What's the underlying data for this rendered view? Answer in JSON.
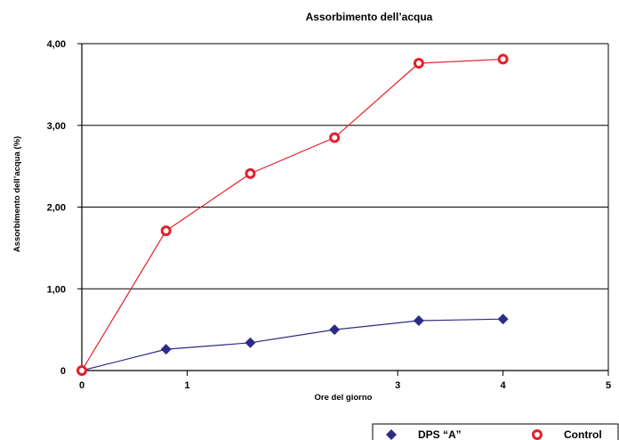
{
  "chart_data": {
    "type": "line",
    "title": "Assorbimento dell’acqua",
    "xlabel": "Ore del giorno",
    "ylabel": "Assorbimento dell’acqua (%)",
    "xlim": [
      0,
      5
    ],
    "ylim": [
      0,
      4
    ],
    "x_ticks": [
      "0",
      "1",
      "3",
      "4",
      "5"
    ],
    "x_tick_values": [
      0,
      1,
      3,
      4,
      5
    ],
    "y_ticks": [
      "0",
      "1,00",
      "2,00",
      "3,00",
      "4,00"
    ],
    "y_tick_values": [
      0,
      1,
      2,
      3,
      4
    ],
    "grid": "horizontal",
    "legend_position": "bottom-right",
    "series": [
      {
        "name": "DPS “A”",
        "color": "#2e2b86",
        "marker": "diamond",
        "x": [
          0,
          0.8,
          1.6,
          2.4,
          3.2,
          4.0
        ],
        "y": [
          0.0,
          0.26,
          0.34,
          0.5,
          0.61,
          0.63
        ]
      },
      {
        "name": "Control",
        "color": "#e3202a",
        "marker": "open-circle",
        "x": [
          0,
          0.8,
          1.6,
          2.4,
          3.2,
          4.0
        ],
        "y": [
          0.0,
          1.71,
          2.41,
          2.85,
          3.76,
          3.81
        ]
      }
    ]
  }
}
